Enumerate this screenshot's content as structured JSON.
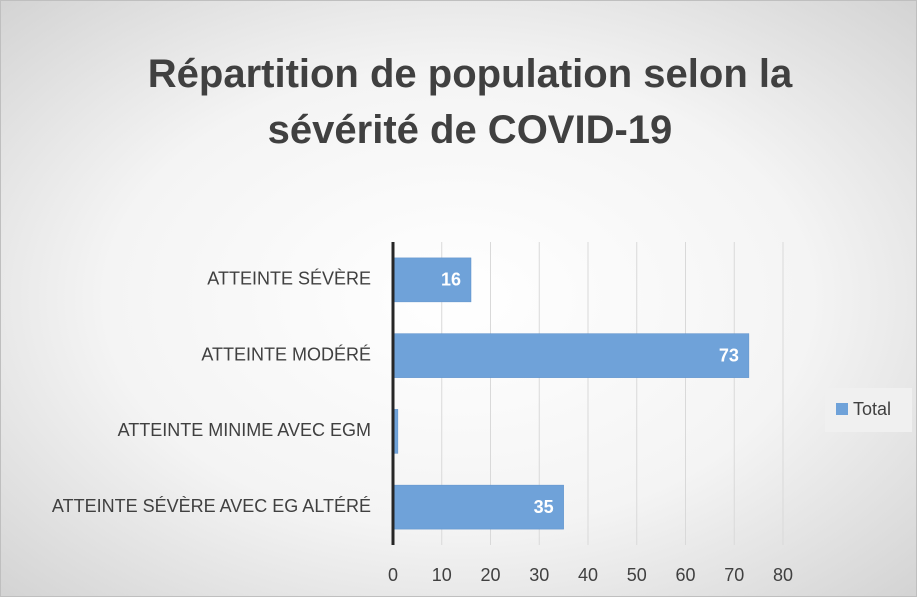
{
  "chart_data": {
    "type": "barh",
    "title": "Répartition de population selon la sévérité de COVID-19",
    "categories": [
      "ATTEINTE SÉVÈRE",
      "ATTEINTE MODÉRÉ",
      "ATTEINTE MINIME AVEC EGM",
      "ATTEINTE SÉVÈRE AVEC EG ALTÉRÉ"
    ],
    "series": [
      {
        "name": "Total",
        "color": "#6fa2d9",
        "values": [
          16,
          73,
          1,
          35
        ],
        "value_labels": [
          "16",
          "73",
          null,
          "35"
        ]
      }
    ],
    "xlim": [
      0,
      80
    ],
    "xticks": [
      0,
      10,
      20,
      30,
      40,
      50,
      60,
      70,
      80
    ],
    "grid": true,
    "legend": "right"
  }
}
